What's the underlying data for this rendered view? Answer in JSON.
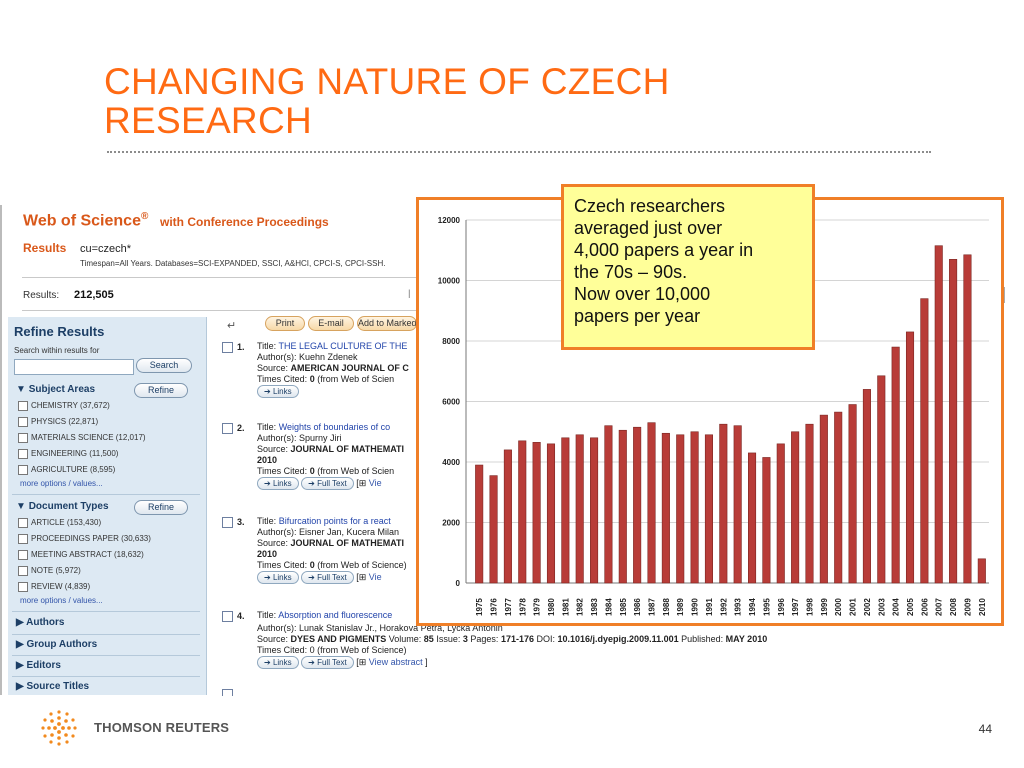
{
  "slide": {
    "title_line1": "CHANGING NATURE OF CZECH",
    "title_line2": "RESEARCH",
    "page_number": "44",
    "footer_brand": "THOMSON REUTERS"
  },
  "colors": {
    "accent": "#ff6a13",
    "callout_bg": "#ffff99",
    "bar": "#b83c38",
    "wos_orange": "#d9581a"
  },
  "callout": {
    "lines": [
      "Czech researchers",
      "averaged just over",
      "4,000 papers a year in",
      "the 70s – 90s.",
      "Now over 10,000",
      "papers per year"
    ]
  },
  "wos": {
    "logo": "Web of Science",
    "reg_mark": "®",
    "subtitle": "with Conference Proceedings",
    "results_label": "Results",
    "query": "cu=czech*",
    "timespan": "Timespan=All Years. Databases=SCI-EXPANDED, SSCI, A&HCI, CPCI-S, CPCI-SSH.",
    "count_label": "Results:",
    "count": "212,505",
    "refine": {
      "title": "Refine Results",
      "search_label": "Search within results for",
      "search_button": "Search",
      "refine_button": "Refine",
      "subject_areas_label": "Subject Areas",
      "subject_areas": [
        "CHEMISTRY (37,672)",
        "PHYSICS (22,871)",
        "MATERIALS SCIENCE (12,017)",
        "ENGINEERING (11,500)",
        "AGRICULTURE (8,595)"
      ],
      "more_options": "more options / values...",
      "document_types_label": "Document Types",
      "document_types": [
        "ARTICLE (153,430)",
        "PROCEEDINGS PAPER (30,633)",
        "MEETING ABSTRACT (18,632)",
        "NOTE (5,972)",
        "REVIEW (4,839)"
      ],
      "collapsed": [
        "Authors",
        "Group Authors",
        "Editors",
        "Source Titles"
      ]
    },
    "toolbar": {
      "print": "Print",
      "email": "E-mail",
      "add": "Add to Marked List"
    },
    "records": [
      {
        "num": "1.",
        "title_label": "Title:",
        "title": "THE LEGAL CULTURE OF THE",
        "author_line": "Author(s): Kuehn Zdenek",
        "source_label": "Source:",
        "source": "AMERICAN JOURNAL OF C",
        "year": "",
        "cited_prefix": "Times Cited:",
        "cited": "0",
        "cited_suffix": "(from Web of Scien",
        "links": "Links",
        "fulltext": ""
      },
      {
        "num": "2.",
        "title_label": "Title:",
        "title": "Weights of boundaries of co",
        "author_line": "Author(s): Spurny Jiri",
        "source_label": "Source:",
        "source": "JOURNAL OF MATHEMATI",
        "year": "2010",
        "cited_prefix": "Times Cited:",
        "cited": "0",
        "cited_suffix": "(from Web of Scien",
        "links": "Links",
        "fulltext": "Full Text",
        "view": "Vie"
      },
      {
        "num": "3.",
        "title_label": "Title:",
        "title": "Bifurcation points for a react",
        "author_line": "Author(s): Eisner Jan, Kucera Milan",
        "source_label": "Source:",
        "source": "JOURNAL OF MATHEMATI",
        "year": "2010",
        "cited_prefix": "Times Cited:",
        "cited": "0",
        "cited_suffix": "(from Web of Science)",
        "links": "Links",
        "fulltext": "Full Text",
        "view": "Vie"
      },
      {
        "num": "4.",
        "title_label": "Title:",
        "title": "Absorption and fluorescence"
      }
    ],
    "record4": {
      "author_line": "Author(s): Lunak Stanislav Jr., Horakova Petra, Lycka Antonin",
      "source_label": "Source:",
      "source": "DYES AND PIGMENTS",
      "volume_label": "Volume:",
      "volume": "85",
      "issue_label": "Issue:",
      "issue": "3",
      "pages_label": "Pages:",
      "pages": "171-176",
      "doi_label": "DOI:",
      "doi": "10.1016/j.dyepig.2009.11.001",
      "published_label": "Published:",
      "published": "MAY 2010",
      "cited_line": "Times Cited: 0 (from Web of Science)",
      "links": "Links",
      "fulltext": "Full Text",
      "view_abstract": "View abstract"
    }
  },
  "chart_data": {
    "type": "bar",
    "categories": [
      "1975",
      "1976",
      "1977",
      "1978",
      "1979",
      "1980",
      "1981",
      "1982",
      "1983",
      "1984",
      "1985",
      "1986",
      "1987",
      "1988",
      "1989",
      "1990",
      "1991",
      "1992",
      "1993",
      "1994",
      "1995",
      "1996",
      "1997",
      "1998",
      "1999",
      "2000",
      "2001",
      "2002",
      "2003",
      "2004",
      "2005",
      "2006",
      "2007",
      "2008",
      "2009",
      "2010"
    ],
    "values": [
      3900,
      3550,
      4400,
      4700,
      4650,
      4600,
      4800,
      4900,
      4800,
      5200,
      5050,
      5150,
      5300,
      4950,
      4900,
      5000,
      4900,
      5250,
      5200,
      4300,
      4150,
      4600,
      5000,
      5250,
      5550,
      5650,
      5900,
      6400,
      6850,
      7800,
      8300,
      9400,
      11150,
      10700,
      10850,
      800
    ],
    "ylim": [
      0,
      12000
    ],
    "yticks": [
      "0",
      "2000",
      "4000",
      "6000",
      "8000",
      "10000",
      "12000"
    ],
    "grid": true,
    "legend": "none"
  }
}
